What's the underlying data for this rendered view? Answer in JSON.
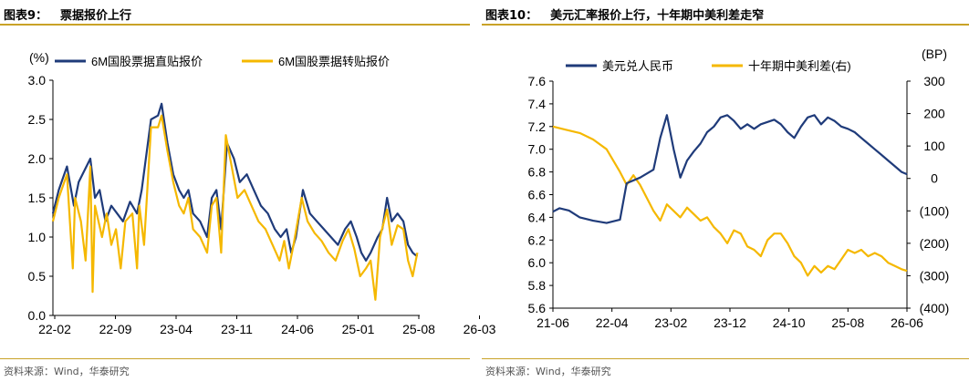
{
  "colors": {
    "navy": "#1f3b7a",
    "gold": "#f5b800",
    "rule": "#c9a227"
  },
  "left": {
    "figure_number": "图表9：",
    "figure_title": "票据报价上行",
    "source": "资料来源：Wind，华泰研究"
  },
  "right": {
    "figure_number": "图表10：",
    "figure_title": "美元汇率报价上行，十年期中美利差走窄",
    "source": "资料来源：Wind，华泰研究"
  },
  "chart_data": [
    {
      "type": "line",
      "ylabel": "(%)",
      "ylim": [
        0.0,
        3.0
      ],
      "y_ticks": [
        0.0,
        0.5,
        1.0,
        1.5,
        2.0,
        2.5,
        3.0
      ],
      "y_tick_labels": [
        "0.0",
        "0.5",
        "1.0",
        "1.5",
        "2.0",
        "2.5",
        "3.0"
      ],
      "x_tick_labels": [
        "22-02",
        "22-09",
        "23-04",
        "23-11",
        "24-06",
        "25-01",
        "25-08",
        "26-03"
      ],
      "legend_position": "top",
      "series": [
        {
          "name": "6M国股票据直贴报价",
          "color": "#1f3b7a",
          "points": [
            [
              0.0,
              1.3
            ],
            [
              0.5,
              1.6
            ],
            [
              1.2,
              1.9
            ],
            [
              1.8,
              1.4
            ],
            [
              2.2,
              1.7
            ],
            [
              3.2,
              2.0
            ],
            [
              3.6,
              1.5
            ],
            [
              4.0,
              1.6
            ],
            [
              4.5,
              1.2
            ],
            [
              5.0,
              1.4
            ],
            [
              5.5,
              1.3
            ],
            [
              6.0,
              1.2
            ],
            [
              6.6,
              1.45
            ],
            [
              7.2,
              1.3
            ],
            [
              7.6,
              1.6
            ],
            [
              8.4,
              2.5
            ],
            [
              9.0,
              2.55
            ],
            [
              9.3,
              2.7
            ],
            [
              9.8,
              2.2
            ],
            [
              10.3,
              1.8
            ],
            [
              10.8,
              1.6
            ],
            [
              11.2,
              1.5
            ],
            [
              11.6,
              1.6
            ],
            [
              12.0,
              1.3
            ],
            [
              12.6,
              1.2
            ],
            [
              13.2,
              1.0
            ],
            [
              13.6,
              1.5
            ],
            [
              14.0,
              1.6
            ],
            [
              14.4,
              1.1
            ],
            [
              14.9,
              2.2
            ],
            [
              15.5,
              2.0
            ],
            [
              16.0,
              1.7
            ],
            [
              16.6,
              1.8
            ],
            [
              17.2,
              1.6
            ],
            [
              17.8,
              1.4
            ],
            [
              18.4,
              1.3
            ],
            [
              19.0,
              1.1
            ],
            [
              19.5,
              1.0
            ],
            [
              20.0,
              1.1
            ],
            [
              20.4,
              0.8
            ],
            [
              20.8,
              1.0
            ],
            [
              21.4,
              1.6
            ],
            [
              22.0,
              1.3
            ],
            [
              22.6,
              1.2
            ],
            [
              23.2,
              1.1
            ],
            [
              23.8,
              1.0
            ],
            [
              24.4,
              0.9
            ],
            [
              25.0,
              1.1
            ],
            [
              25.5,
              1.2
            ],
            [
              26.0,
              1.0
            ],
            [
              26.4,
              0.8
            ],
            [
              26.8,
              0.7
            ],
            [
              27.2,
              0.8
            ],
            [
              27.8,
              1.0
            ],
            [
              28.2,
              1.1
            ],
            [
              28.6,
              1.5
            ],
            [
              29.0,
              1.2
            ],
            [
              29.5,
              1.3
            ],
            [
              30.0,
              1.2
            ],
            [
              30.4,
              0.9
            ],
            [
              30.8,
              0.8
            ],
            [
              31.2,
              0.75
            ]
          ]
        },
        {
          "name": "6M国股票据转贴报价",
          "color": "#f5b800",
          "points": [
            [
              0.0,
              1.2
            ],
            [
              0.5,
              1.5
            ],
            [
              1.2,
              1.8
            ],
            [
              1.7,
              0.6
            ],
            [
              1.9,
              1.5
            ],
            [
              2.4,
              1.2
            ],
            [
              2.8,
              0.7
            ],
            [
              3.2,
              1.9
            ],
            [
              3.4,
              0.3
            ],
            [
              3.6,
              1.4
            ],
            [
              4.2,
              1.0
            ],
            [
              4.6,
              1.3
            ],
            [
              5.0,
              0.9
            ],
            [
              5.4,
              1.1
            ],
            [
              5.8,
              0.6
            ],
            [
              6.2,
              1.2
            ],
            [
              6.8,
              1.3
            ],
            [
              7.2,
              0.6
            ],
            [
              7.4,
              1.4
            ],
            [
              7.8,
              0.9
            ],
            [
              8.4,
              2.4
            ],
            [
              9.0,
              2.4
            ],
            [
              9.3,
              2.55
            ],
            [
              9.8,
              2.1
            ],
            [
              10.3,
              1.7
            ],
            [
              10.8,
              1.4
            ],
            [
              11.2,
              1.3
            ],
            [
              11.6,
              1.5
            ],
            [
              12.0,
              1.1
            ],
            [
              12.6,
              1.0
            ],
            [
              13.2,
              0.8
            ],
            [
              13.6,
              1.4
            ],
            [
              14.0,
              1.5
            ],
            [
              14.4,
              0.8
            ],
            [
              14.8,
              2.3
            ],
            [
              15.3,
              1.9
            ],
            [
              15.8,
              1.5
            ],
            [
              16.4,
              1.6
            ],
            [
              17.0,
              1.4
            ],
            [
              17.6,
              1.2
            ],
            [
              18.2,
              1.1
            ],
            [
              18.8,
              0.9
            ],
            [
              19.4,
              0.7
            ],
            [
              19.8,
              0.95
            ],
            [
              20.2,
              0.6
            ],
            [
              20.6,
              0.9
            ],
            [
              21.3,
              1.5
            ],
            [
              21.8,
              1.2
            ],
            [
              22.4,
              1.05
            ],
            [
              23.0,
              0.95
            ],
            [
              23.6,
              0.8
            ],
            [
              24.2,
              0.7
            ],
            [
              24.8,
              0.95
            ],
            [
              25.3,
              1.1
            ],
            [
              25.8,
              0.85
            ],
            [
              26.3,
              0.5
            ],
            [
              26.8,
              0.6
            ],
            [
              27.2,
              0.7
            ],
            [
              27.6,
              0.2
            ],
            [
              28.0,
              1.0
            ],
            [
              28.6,
              1.35
            ],
            [
              29.0,
              0.9
            ],
            [
              29.5,
              1.15
            ],
            [
              30.0,
              1.1
            ],
            [
              30.4,
              0.7
            ],
            [
              30.8,
              0.5
            ],
            [
              31.2,
              0.8
            ]
          ]
        }
      ]
    },
    {
      "type": "line",
      "y_left_label": "",
      "y_right_label": "(BP)",
      "ylim_left": [
        5.6,
        7.6
      ],
      "ylim_right": [
        -400,
        300
      ],
      "y_left_ticks": [
        5.6,
        5.8,
        6.0,
        6.2,
        6.4,
        6.6,
        6.8,
        7.0,
        7.2,
        7.4,
        7.6
      ],
      "y_left_tick_labels": [
        "5.6",
        "5.8",
        "6.0",
        "6.2",
        "6.4",
        "6.6",
        "6.8",
        "7.0",
        "7.2",
        "7.4",
        "7.6"
      ],
      "y_right_ticks": [
        -400,
        -300,
        -200,
        -100,
        0,
        100,
        200,
        300
      ],
      "y_right_tick_labels": [
        "(400)",
        "(300)",
        "(200)",
        "(100)",
        "0",
        "100",
        "200",
        "300"
      ],
      "x_tick_labels": [
        "21-06",
        "22-04",
        "23-02",
        "23-12",
        "24-10",
        "25-08",
        "26-06"
      ],
      "legend_position": "top",
      "series": [
        {
          "name": "美元兑人民币",
          "axis": "left",
          "color": "#1f3b7a",
          "points": [
            [
              0.0,
              6.45
            ],
            [
              0.5,
              6.48
            ],
            [
              1.2,
              6.46
            ],
            [
              2.0,
              6.4
            ],
            [
              3.0,
              6.37
            ],
            [
              4.0,
              6.35
            ],
            [
              5.0,
              6.38
            ],
            [
              5.5,
              6.7
            ],
            [
              6.5,
              6.75
            ],
            [
              7.5,
              6.82
            ],
            [
              8.0,
              7.1
            ],
            [
              8.5,
              7.3
            ],
            [
              9.0,
              7.0
            ],
            [
              9.5,
              6.75
            ],
            [
              10.0,
              6.9
            ],
            [
              10.5,
              6.98
            ],
            [
              11.0,
              7.05
            ],
            [
              11.5,
              7.15
            ],
            [
              12.0,
              7.2
            ],
            [
              12.5,
              7.28
            ],
            [
              13.0,
              7.3
            ],
            [
              13.5,
              7.25
            ],
            [
              14.0,
              7.18
            ],
            [
              14.5,
              7.22
            ],
            [
              15.0,
              7.18
            ],
            [
              15.5,
              7.22
            ],
            [
              16.0,
              7.24
            ],
            [
              16.5,
              7.26
            ],
            [
              17.0,
              7.22
            ],
            [
              17.5,
              7.15
            ],
            [
              18.0,
              7.1
            ],
            [
              18.5,
              7.2
            ],
            [
              19.0,
              7.28
            ],
            [
              19.5,
              7.3
            ],
            [
              20.0,
              7.22
            ],
            [
              20.5,
              7.28
            ],
            [
              21.0,
              7.25
            ],
            [
              21.5,
              7.2
            ],
            [
              22.0,
              7.18
            ],
            [
              22.5,
              7.15
            ],
            [
              23.0,
              7.1
            ],
            [
              23.5,
              7.05
            ],
            [
              24.0,
              7.0
            ],
            [
              24.5,
              6.95
            ],
            [
              25.0,
              6.9
            ],
            [
              25.5,
              6.85
            ],
            [
              26.0,
              6.8
            ],
            [
              26.4,
              6.78
            ]
          ]
        },
        {
          "name": "十年期中美利差(右)",
          "axis": "right",
          "color": "#f5b800",
          "points": [
            [
              0.0,
              160
            ],
            [
              1.0,
              150
            ],
            [
              2.0,
              140
            ],
            [
              3.0,
              120
            ],
            [
              4.0,
              90
            ],
            [
              5.0,
              20
            ],
            [
              5.5,
              -20
            ],
            [
              6.0,
              10
            ],
            [
              6.5,
              -20
            ],
            [
              7.0,
              -60
            ],
            [
              7.5,
              -100
            ],
            [
              8.0,
              -130
            ],
            [
              8.5,
              -80
            ],
            [
              9.0,
              -100
            ],
            [
              9.5,
              -120
            ],
            [
              10.0,
              -90
            ],
            [
              10.5,
              -110
            ],
            [
              11.0,
              -130
            ],
            [
              11.5,
              -120
            ],
            [
              12.0,
              -150
            ],
            [
              12.5,
              -170
            ],
            [
              13.0,
              -200
            ],
            [
              13.5,
              -160
            ],
            [
              14.0,
              -170
            ],
            [
              14.5,
              -210
            ],
            [
              15.0,
              -220
            ],
            [
              15.5,
              -240
            ],
            [
              16.0,
              -190
            ],
            [
              16.5,
              -170
            ],
            [
              17.0,
              -170
            ],
            [
              17.5,
              -200
            ],
            [
              18.0,
              -240
            ],
            [
              18.5,
              -260
            ],
            [
              19.0,
              -300
            ],
            [
              19.5,
              -270
            ],
            [
              20.0,
              -290
            ],
            [
              20.5,
              -270
            ],
            [
              21.0,
              -280
            ],
            [
              21.5,
              -250
            ],
            [
              22.0,
              -220
            ],
            [
              22.5,
              -230
            ],
            [
              23.0,
              -220
            ],
            [
              23.5,
              -240
            ],
            [
              24.0,
              -230
            ],
            [
              24.5,
              -240
            ],
            [
              25.0,
              -260
            ],
            [
              25.5,
              -270
            ],
            [
              26.0,
              -280
            ],
            [
              26.4,
              -285
            ]
          ]
        }
      ]
    }
  ]
}
